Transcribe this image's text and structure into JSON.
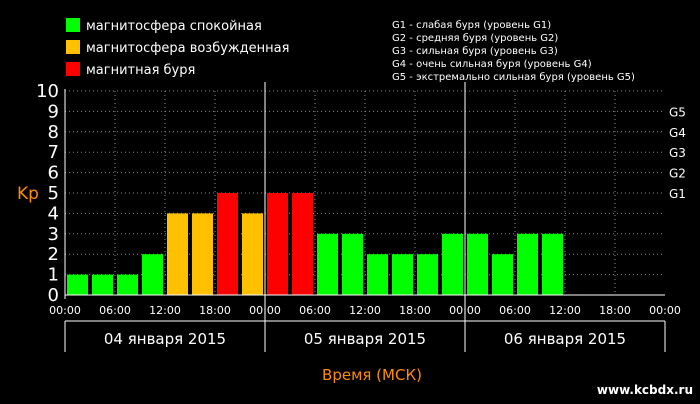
{
  "legend": {
    "items": [
      {
        "label": "магнитосфера спокойная",
        "color": "#00ff00"
      },
      {
        "label": "магнитосфера возбужденная",
        "color": "#ffc000"
      },
      {
        "label": "магнитная буря",
        "color": "#ff0000"
      }
    ],
    "g_levels": [
      "G1 - слабая буря (уровень G1)",
      "G2 - средняя буря (уровень G2)",
      "G3 - сильная буря (уровень G3)",
      "G4 - очень сильная буря (уровень G4)",
      "G5 - экстремально сильная буря (уровень G5)"
    ]
  },
  "watermark": "www.kcbdx.ru",
  "colors": {
    "background": "#000000",
    "text": "#ffffff",
    "axis_title": "#ff8c00",
    "quiet": "#00ff00",
    "active": "#ffc000",
    "storm": "#ff0000"
  },
  "chart_data": {
    "type": "bar",
    "ylabel": "Kp",
    "xlabel": "Время (МСК)",
    "ylim": [
      0,
      10
    ],
    "yticks": [
      "0",
      "1",
      "2",
      "3",
      "4",
      "5",
      "6",
      "7",
      "8",
      "9",
      "10"
    ],
    "g_ticks": [
      {
        "label": "G1",
        "kp": 5
      },
      {
        "label": "G2",
        "kp": 6
      },
      {
        "label": "G3",
        "kp": 7
      },
      {
        "label": "G4",
        "kp": 8
      },
      {
        "label": "G5",
        "kp": 9
      }
    ],
    "x_tick_labels": [
      "00:00",
      "06:00",
      "12:00",
      "18:00",
      "00:00",
      "06:00",
      "12:00",
      "18:00",
      "00:00",
      "06:00",
      "12:00",
      "18:00",
      "00:00"
    ],
    "days": [
      "04 января 2015",
      "05 января 2015",
      "06 января 2015"
    ],
    "interval_hours": 3,
    "series": [
      {
        "values": [
          1,
          1,
          1,
          2,
          4,
          4,
          5,
          4,
          5,
          5,
          3,
          3,
          2,
          2,
          2,
          3,
          3,
          2,
          3,
          3
        ],
        "levels": [
          "quiet",
          "quiet",
          "quiet",
          "quiet",
          "active",
          "active",
          "storm",
          "active",
          "storm",
          "storm",
          "quiet",
          "quiet",
          "quiet",
          "quiet",
          "quiet",
          "quiet",
          "quiet",
          "quiet",
          "quiet",
          "quiet"
        ]
      }
    ],
    "grid": true
  }
}
